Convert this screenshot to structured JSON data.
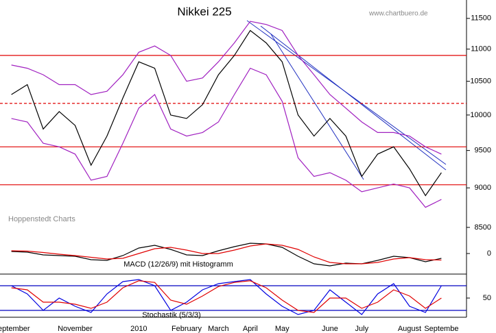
{
  "chart_data": [
    {
      "type": "line",
      "title": "Nikkei 225",
      "watermark": "www.chartbuero.de",
      "source_note": "Hoppenstedt Charts",
      "log": true,
      "ylim": [
        8390,
        11810
      ],
      "yticks": [
        11500,
        11000,
        10500,
        10000,
        9500,
        9000,
        8500
      ],
      "categories": [
        "September",
        null,
        null,
        null,
        "November",
        null,
        null,
        null,
        "2010",
        null,
        null,
        "February",
        null,
        "March",
        null,
        "April",
        null,
        "May",
        null,
        null,
        "June",
        null,
        "July",
        null,
        null,
        "August",
        null,
        "Septembe"
      ],
      "series": [
        {
          "color": "#000000",
          "values": [
            10300,
            10450,
            9800,
            10050,
            9850,
            9300,
            9700,
            10250,
            10800,
            10700,
            10000,
            9950,
            10150,
            10600,
            10900,
            11300,
            11100,
            10800,
            10000,
            9700,
            9950,
            9700,
            9150,
            9450,
            9550,
            9250,
            8900,
            9200
          ]
        },
        {
          "color": "#a020c0",
          "values": [
            10750,
            10700,
            10600,
            10450,
            10450,
            10300,
            10350,
            10600,
            10950,
            11050,
            10900,
            10500,
            10550,
            10800,
            11100,
            11450,
            11400,
            11300,
            10900,
            10600,
            10300,
            10100,
            9900,
            9750,
            9750,
            9700,
            9550,
            9450
          ]
        },
        {
          "color": "#a020c0",
          "values": [
            9950,
            9900,
            9600,
            9550,
            9450,
            9100,
            9150,
            9600,
            10100,
            10300,
            9800,
            9700,
            9750,
            9900,
            10300,
            10700,
            10600,
            10200,
            9400,
            9150,
            9200,
            9100,
            8950,
            9000,
            9050,
            9000,
            8750,
            8850
          ]
        }
      ],
      "hlines": [
        {
          "value": 10900,
          "color": "#e00000",
          "dashed": false
        },
        {
          "value": 10170,
          "color": "#e00000",
          "dashed": true
        },
        {
          "value": 9550,
          "color": "#e00000",
          "dashed": false
        },
        {
          "value": 9040,
          "color": "#e00000",
          "dashed": false
        }
      ]
    },
    {
      "type": "line",
      "title": "MACD (12/26/9) mit Histogramm",
      "ylim": [
        -300,
        250
      ],
      "yticks": [
        0
      ],
      "series": [
        {
          "color": "#000000",
          "values": [
            30,
            20,
            -20,
            -30,
            -40,
            -90,
            -100,
            -30,
            80,
            120,
            60,
            -20,
            -30,
            40,
            100,
            150,
            140,
            90,
            -40,
            -150,
            -180,
            -140,
            -150,
            -100,
            -40,
            -60,
            -120,
            -70
          ]
        },
        {
          "color": "#e00000",
          "values": [
            40,
            35,
            15,
            -10,
            -30,
            -55,
            -80,
            -70,
            0,
            70,
            90,
            50,
            0,
            0,
            50,
            110,
            140,
            120,
            60,
            -50,
            -130,
            -150,
            -150,
            -130,
            -80,
            -60,
            -90,
            -95
          ]
        }
      ]
    },
    {
      "type": "line",
      "title": "Stochastik (5/3/3)",
      "ylim": [
        0,
        100
      ],
      "yticks": [
        50
      ],
      "series": [
        {
          "color": "#0000e0",
          "values": [
            80,
            60,
            20,
            50,
            30,
            15,
            60,
            90,
            95,
            80,
            20,
            40,
            70,
            85,
            90,
            95,
            60,
            30,
            10,
            20,
            70,
            40,
            10,
            60,
            85,
            30,
            15,
            80
          ]
        },
        {
          "color": "#e00000",
          "values": [
            75,
            70,
            40,
            40,
            35,
            25,
            40,
            75,
            92,
            88,
            45,
            35,
            55,
            78,
            88,
            92,
            75,
            45,
            20,
            15,
            50,
            50,
            25,
            40,
            70,
            55,
            25,
            50
          ]
        }
      ],
      "hlines": [
        {
          "value": 80,
          "color": "#0000c0",
          "dashed": false
        },
        {
          "value": 20,
          "color": "#0000c0",
          "dashed": false
        }
      ]
    }
  ]
}
